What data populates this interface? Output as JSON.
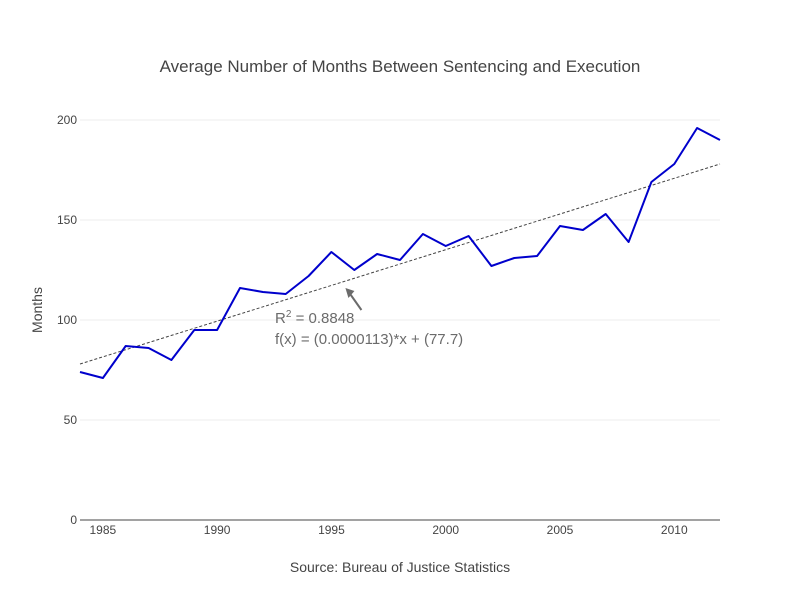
{
  "chart_data": {
    "type": "line",
    "title": "Average Number of Months Between Sentencing and Execution",
    "xlabel": "Source: Bureau of Justice Statistics",
    "ylabel": "Months",
    "xlim": [
      1984,
      2012
    ],
    "ylim": [
      0,
      210
    ],
    "x_ticks": [
      1985,
      1990,
      1995,
      2000,
      2005,
      2010
    ],
    "y_ticks": [
      0,
      50,
      100,
      150,
      200
    ],
    "grid": true,
    "series": [
      {
        "color": "#0000cc",
        "x": [
          1984,
          1985,
          1986,
          1987,
          1988,
          1989,
          1990,
          1991,
          1992,
          1993,
          1994,
          1995,
          1996,
          1997,
          1998,
          1999,
          2000,
          2001,
          2002,
          2003,
          2004,
          2005,
          2006,
          2007,
          2008,
          2009,
          2010,
          2011,
          2012
        ],
        "y": [
          74,
          71,
          87,
          86,
          80,
          95,
          95,
          116,
          114,
          113,
          122,
          134,
          125,
          133,
          130,
          143,
          137,
          142,
          127,
          131,
          132,
          147,
          145,
          153,
          139,
          169,
          178,
          196,
          190
        ]
      }
    ],
    "trendline": {
      "style": "dashed",
      "color": "#444444",
      "start": [
        1984,
        78
      ],
      "end": [
        2012,
        178
      ]
    },
    "annotation": {
      "r2_prefix": "R",
      "r2_sup": "2",
      "r2_value": " = 0.8848",
      "equation": "f(x) = (0.0000113)*x + (77.7)",
      "arrow_target": [
        1995.7,
        115
      ],
      "color": "#6b6b6b"
    }
  }
}
